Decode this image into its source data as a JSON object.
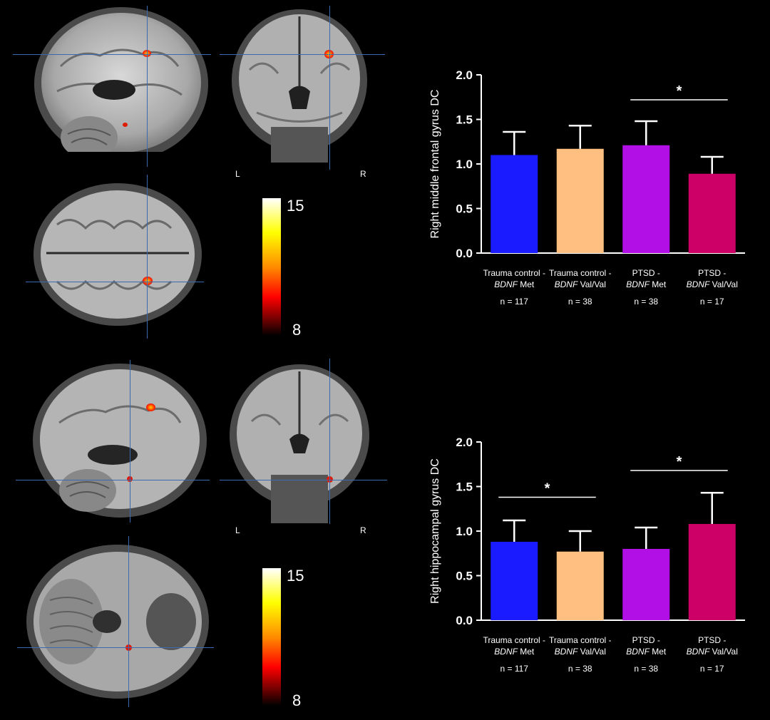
{
  "colorbar": {
    "max": "15",
    "min": "8",
    "colors": [
      "#ffffff",
      "#ffff00",
      "#ff8c00",
      "#ff0000",
      "#600000",
      "#000000"
    ]
  },
  "views": {
    "top": {
      "left_label": "L",
      "right_label": "R"
    },
    "bottom": {
      "left_label": "L",
      "right_label": "R"
    }
  },
  "chart_data": [
    {
      "type": "bar",
      "ylabel": "Right middle frontal gyrus DC",
      "ylim": [
        0,
        2.0
      ],
      "yticks": [
        "0.0",
        "0.5",
        "1.0",
        "1.5",
        "2.0"
      ],
      "categories": [
        {
          "line1": "Trauma control -",
          "gene": "BDNF",
          "allele": " Met",
          "n": "n = 117"
        },
        {
          "line1": "Trauma control -",
          "gene": "BDNF",
          "allele": " Val/Val",
          "n": "n = 38"
        },
        {
          "line1": "PTSD -",
          "gene": "BDNF",
          "allele": " Met",
          "n": "n = 38"
        },
        {
          "line1": "PTSD -",
          "gene": "BDNF",
          "allele": " Val/Val",
          "n": "n = 17"
        }
      ],
      "values": [
        1.1,
        1.17,
        1.21,
        0.89
      ],
      "errors": [
        0.26,
        0.26,
        0.27,
        0.19
      ],
      "colors": [
        "#1b1bff",
        "#ffbf80",
        "#b20ee6",
        "#cc0066"
      ],
      "significance": [
        {
          "from": 2,
          "to": 3,
          "y": 1.72,
          "mark": "*"
        }
      ]
    },
    {
      "type": "bar",
      "ylabel": "Right hippocampal gyrus DC",
      "ylim": [
        0,
        2.0
      ],
      "yticks": [
        "0.0",
        "0.5",
        "1.0",
        "1.5",
        "2.0"
      ],
      "categories": [
        {
          "line1": "Trauma control -",
          "gene": "BDNF",
          "allele": " Met",
          "n": "n = 117"
        },
        {
          "line1": "Trauma control -",
          "gene": "BDNF",
          "allele": " Val/Val",
          "n": "n = 38"
        },
        {
          "line1": "PTSD -",
          "gene": "BDNF",
          "allele": " Met",
          "n": "n = 38"
        },
        {
          "line1": "PTSD -",
          "gene": "BDNF",
          "allele": " Val/Val",
          "n": "n = 17"
        }
      ],
      "values": [
        0.88,
        0.77,
        0.8,
        1.08
      ],
      "errors": [
        0.24,
        0.23,
        0.24,
        0.35
      ],
      "colors": [
        "#1b1bff",
        "#ffbf80",
        "#b20ee6",
        "#cc0066"
      ],
      "significance": [
        {
          "from": 0,
          "to": 1,
          "y": 1.38,
          "mark": "*"
        },
        {
          "from": 2,
          "to": 3,
          "y": 1.68,
          "mark": "*"
        }
      ]
    }
  ]
}
